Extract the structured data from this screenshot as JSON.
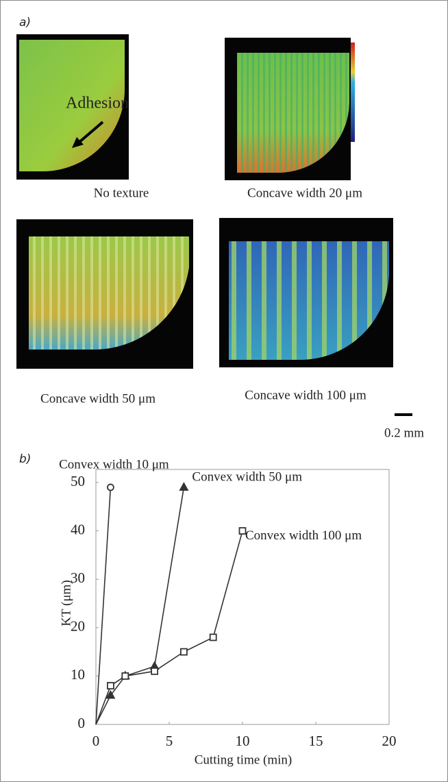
{
  "panel_a": {
    "label": "a)",
    "annotation": "Adhesion",
    "captions": [
      "No texture",
      "Concave width 20 μm",
      "Concave width 50 μm",
      "Concave width 100 μm"
    ],
    "scale_bar": "0.2 mm"
  },
  "panel_b_label": "b)",
  "chart_data": {
    "type": "line",
    "x_label": "Cutting time (min)",
    "y_label": "KT (μm)",
    "xlim": [
      0,
      20
    ],
    "xticks": [
      0,
      5,
      10,
      15,
      20
    ],
    "ylim": [
      0,
      50
    ],
    "yticks": [
      0,
      10,
      20,
      30,
      40,
      50
    ],
    "series": [
      {
        "name": "Convex width 10 μm",
        "color": "#333333",
        "marker": "circle",
        "x": [
          0,
          1
        ],
        "values": [
          0,
          49
        ]
      },
      {
        "name": "Convex width 50 μm",
        "color": "#333333",
        "marker": "triangle",
        "x": [
          0,
          1,
          2,
          4,
          6
        ],
        "values": [
          0,
          6,
          10,
          12,
          49
        ]
      },
      {
        "name": "Convex width 100 μm",
        "color": "#333333",
        "marker": "square",
        "x": [
          0,
          1,
          2,
          4,
          6,
          8,
          10
        ],
        "values": [
          0,
          8,
          10,
          11,
          15,
          18,
          40
        ]
      }
    ]
  }
}
